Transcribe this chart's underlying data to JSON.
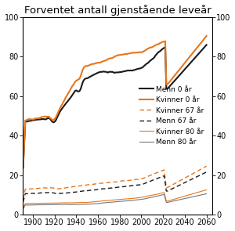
{
  "title": "Forventet antall gjenstående leveår",
  "ylim": [
    0,
    100
  ],
  "xlim": [
    1891,
    2065
  ],
  "xticks": [
    1900,
    1920,
    1940,
    1960,
    1980,
    2000,
    2020,
    2040,
    2060
  ],
  "yticks": [
    0,
    20,
    40,
    60,
    80,
    100
  ],
  "color_orange": "#E8761A",
  "color_black": "#1a1a1a",
  "color_gray": "#777777",
  "legend_entries": [
    "Menn 0 år",
    "Kvinner 0 år",
    "Kvinner 67 år",
    "Menn 67 år",
    "Kvinner 80 år",
    "Menn 80 år"
  ],
  "title_fontsize": 9.5,
  "tick_fontsize": 7.0,
  "legend_fontsize": 6.5
}
